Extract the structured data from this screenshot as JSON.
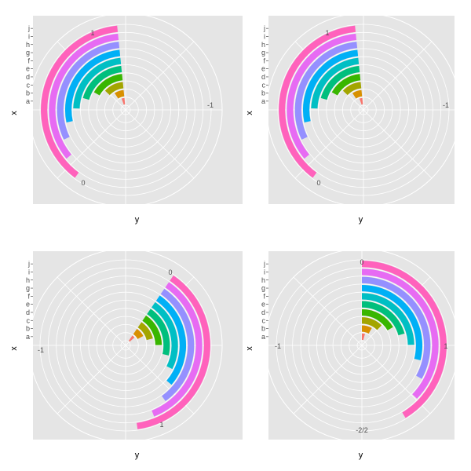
{
  "colors": {
    "panel_bg": "#e5e5e5",
    "grid": "#ffffff",
    "tick_text": "#4d4d4d",
    "categories": {
      "a": "#f8766d",
      "b": "#d89000",
      "c": "#a3a500",
      "d": "#39b600",
      "e": "#00bf7d",
      "f": "#00bfc4",
      "g": "#00b0f6",
      "h": "#9590ff",
      "i": "#e76bf3",
      "j": "#ff62bc"
    }
  },
  "chart_data": [
    {
      "type": "bar",
      "coord": "polar",
      "panel": "top-left",
      "xlabel": "y",
      "ylabel": "x",
      "radial_categories": [
        "a",
        "b",
        "c",
        "d",
        "e",
        "f",
        "g",
        "h",
        "i",
        "j"
      ],
      "values": [
        0.1,
        0.2,
        0.3,
        0.4,
        0.5,
        0.6,
        0.7,
        0.8,
        0.9,
        1.0
      ],
      "angle_ticks": [
        {
          "label": "1",
          "value": 1
        },
        {
          "label": "-1",
          "value": -1
        },
        {
          "label": "0",
          "value": 0
        }
      ],
      "grid": true,
      "legend": "none"
    },
    {
      "type": "bar",
      "coord": "polar",
      "panel": "top-right",
      "xlabel": "y",
      "ylabel": "x",
      "radial_categories": [
        "a",
        "b",
        "c",
        "d",
        "e",
        "f",
        "g",
        "h",
        "i",
        "j"
      ],
      "values": [
        0.1,
        0.2,
        0.3,
        0.4,
        0.5,
        0.6,
        0.7,
        0.8,
        0.9,
        1.0
      ],
      "angle_ticks": [
        {
          "label": "1",
          "value": 1
        },
        {
          "label": "-1",
          "value": -1
        },
        {
          "label": "0",
          "value": 0
        }
      ],
      "grid": true,
      "legend": "none"
    },
    {
      "type": "bar",
      "coord": "polar",
      "panel": "bottom-left",
      "xlabel": "y",
      "ylabel": "x",
      "radial_categories": [
        "a",
        "b",
        "c",
        "d",
        "e",
        "f",
        "g",
        "h",
        "i",
        "j"
      ],
      "values": [
        0.1,
        0.2,
        0.3,
        0.4,
        0.5,
        0.6,
        0.7,
        0.8,
        0.9,
        1.0
      ],
      "angle_ticks": [
        {
          "label": "0",
          "value": 0
        },
        {
          "label": "-1",
          "value": -1
        },
        {
          "label": "1",
          "value": 1
        }
      ],
      "grid": true,
      "legend": "none"
    },
    {
      "type": "bar",
      "coord": "polar",
      "panel": "bottom-right",
      "xlabel": "y",
      "ylabel": "x",
      "radial_categories": [
        "a",
        "b",
        "c",
        "d",
        "e",
        "f",
        "g",
        "h",
        "i",
        "j"
      ],
      "values": [
        0.1,
        0.2,
        0.3,
        0.4,
        0.5,
        0.6,
        0.7,
        0.8,
        0.9,
        1.0
      ],
      "angle_ticks": [
        {
          "label": "0",
          "value": 0
        },
        {
          "label": "1",
          "value": 1
        },
        {
          "label": "-2/2",
          "value": 2
        },
        {
          "label": "-1",
          "value": 3
        }
      ],
      "grid": true,
      "legend": "none"
    }
  ]
}
